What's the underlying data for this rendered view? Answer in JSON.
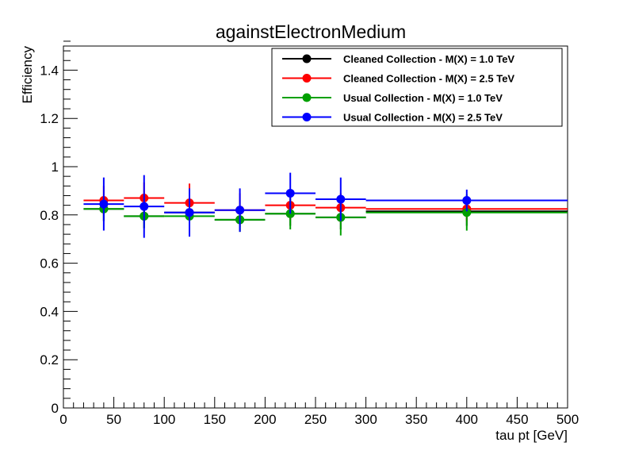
{
  "chart_data": {
    "type": "scatter",
    "title": "againstElectronMedium",
    "xlabel": "tau pt [GeV]",
    "ylabel": "Efficiency",
    "xlim": [
      0,
      500
    ],
    "ylim": [
      0,
      1.5
    ],
    "x_ticks": [
      0,
      50,
      100,
      150,
      200,
      250,
      300,
      350,
      400,
      450,
      500
    ],
    "x_tick_labels": [
      "0",
      "50",
      "100",
      "150",
      "200",
      "250",
      "300",
      "350",
      "400",
      "450",
      "500"
    ],
    "y_ticks": [
      0,
      0.2,
      0.4,
      0.6,
      0.8,
      1.0,
      1.2,
      1.4
    ],
    "y_tick_labels": [
      "0",
      "0.2",
      "0.4",
      "0.6",
      "0.8",
      "1",
      "1.2",
      "1.4"
    ],
    "grid": false,
    "legend_position": "top-right",
    "bin_edges": [
      20,
      60,
      100,
      150,
      200,
      250,
      300,
      500
    ],
    "x": [
      40,
      80,
      125,
      175,
      225,
      275,
      400
    ],
    "series": [
      {
        "name": "Cleaned Collection - M(X) = 1.0 TeV",
        "color": "#000000",
        "values": [
          0.825,
          0.795,
          0.81,
          0.78,
          0.805,
          0.79,
          0.815
        ],
        "errors": [
          0.05,
          0.05,
          0.05,
          0.05,
          0.05,
          0.05,
          0.06
        ]
      },
      {
        "name": "Cleaned Collection - M(X) = 2.5 TeV",
        "color": "#ff0000",
        "values": [
          0.86,
          0.87,
          0.85,
          0.82,
          0.84,
          0.83,
          0.825
        ],
        "errors": [
          0.06,
          0.065,
          0.08,
          0.07,
          0.06,
          0.06,
          0.05
        ]
      },
      {
        "name": "Usual Collection - M(X) = 1.0 TeV",
        "color": "#00a000",
        "values": [
          0.825,
          0.795,
          0.795,
          0.78,
          0.805,
          0.79,
          0.81
        ],
        "errors": [
          0.05,
          0.05,
          0.05,
          0.05,
          0.065,
          0.075,
          0.075
        ]
      },
      {
        "name": "Usual Collection - M(X) = 2.5 TeV",
        "color": "#0000ff",
        "values": [
          0.845,
          0.835,
          0.81,
          0.82,
          0.89,
          0.865,
          0.86
        ],
        "errors": [
          0.11,
          0.13,
          0.1,
          0.09,
          0.085,
          0.09,
          0.045
        ]
      }
    ]
  }
}
